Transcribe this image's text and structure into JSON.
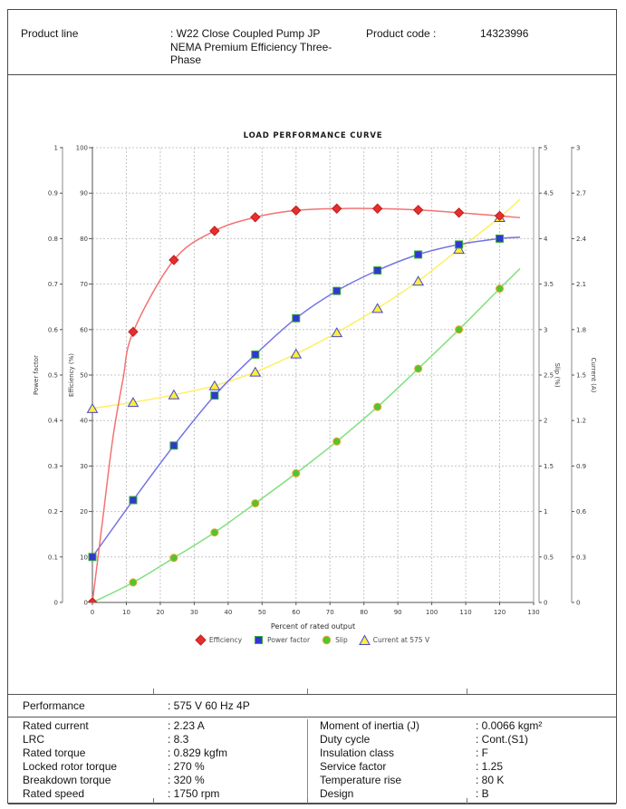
{
  "header": {
    "product_line_label": "Product line",
    "product_line_value": ": W22 Close Coupled Pump JP\nNEMA Premium Efficiency Three-\nPhase",
    "product_code_label": "Product code :",
    "product_code_value": "14323996"
  },
  "chart_data": {
    "type": "line",
    "title": "LOAD PERFORMANCE CURVE",
    "xlabel": "Percent of rated output",
    "grid": "on",
    "legend_position": "bottom",
    "x": [
      0,
      12,
      24,
      36,
      48,
      60,
      72,
      84,
      96,
      108,
      120
    ],
    "axes": {
      "x": {
        "label": "Percent of rated output",
        "min": 0,
        "max": 130,
        "step": 10
      },
      "power_factor": {
        "label": "Power factor",
        "min": 0,
        "max": 1,
        "step": 0.1,
        "side": "left-outer"
      },
      "efficiency": {
        "label": "Efficiency (%)",
        "min": 0,
        "max": 100,
        "step": 10,
        "side": "left-inner"
      },
      "slip": {
        "label": "Slip (%)",
        "min": 0,
        "max": 5,
        "step": 0.5,
        "side": "right-inner"
      },
      "current": {
        "label": "Current (A)",
        "min": 0,
        "max": 3,
        "step": 0.3,
        "side": "right-outer"
      }
    },
    "series": [
      {
        "name": "Efficiency",
        "axis": "efficiency",
        "marker": "diamond",
        "line_color": "#f47272",
        "marker_fill": "#e62e2e",
        "marker_stroke": "#bf1f1f",
        "values": [
          0,
          59.5,
          75.3,
          81.7,
          84.7,
          86.2,
          86.6,
          86.6,
          86.3,
          85.7,
          85.0
        ],
        "line_extra": [
          [
            3,
            18
          ],
          [
            6,
            36
          ],
          [
            9,
            49
          ],
          [
            126,
            84.6
          ]
        ]
      },
      {
        "name": "Power factor",
        "axis": "power_factor",
        "marker": "square",
        "line_color": "#7373e6",
        "marker_fill": "#3136d2",
        "marker_stroke": "#35ad35",
        "values": [
          0.1,
          0.225,
          0.345,
          0.455,
          0.545,
          0.625,
          0.685,
          0.73,
          0.765,
          0.787,
          0.8
        ],
        "line_extra": [
          [
            126,
            0.803
          ]
        ]
      },
      {
        "name": "Slip",
        "axis": "slip",
        "marker": "circle",
        "line_color": "#7fe07f",
        "marker_fill": "#4dc72f",
        "marker_stroke": "#f0a02c",
        "values": [
          0,
          0.22,
          0.49,
          0.77,
          1.09,
          1.42,
          1.77,
          2.15,
          2.57,
          3.0,
          3.45
        ],
        "line_extra": [
          [
            126,
            3.67
          ]
        ]
      },
      {
        "name": "Current at 575 V",
        "axis": "current",
        "marker": "triangle",
        "line_color": "#ffef60",
        "marker_fill": "#fcee3e",
        "marker_stroke": "#4646cb",
        "values": [
          1.28,
          1.32,
          1.37,
          1.43,
          1.52,
          1.64,
          1.78,
          1.94,
          2.12,
          2.33,
          2.54
        ],
        "line_extra": [
          [
            126,
            2.66
          ]
        ]
      }
    ]
  },
  "performance": {
    "section_label": "Performance",
    "section_value": ": 575 V 60 Hz 4P",
    "rows_left": [
      {
        "label": "Rated current",
        "value": ": 2.23 A"
      },
      {
        "label": "LRC",
        "value": ": 8.3"
      },
      {
        "label": "Rated torque",
        "value": ": 0.829 kgfm"
      },
      {
        "label": "Locked rotor torque",
        "value": ": 270 %"
      },
      {
        "label": "Breakdown torque",
        "value": ": 320 %"
      },
      {
        "label": "Rated speed",
        "value": ": 1750 rpm"
      }
    ],
    "rows_right": [
      {
        "label": "Moment of inertia (J)",
        "value": ": 0.0066 kgm²"
      },
      {
        "label": "Duty cycle",
        "value": ": Cont.(S1)"
      },
      {
        "label": "Insulation class",
        "value": ": F"
      },
      {
        "label": "Service factor",
        "value": ": 1.25"
      },
      {
        "label": "Temperature rise",
        "value": ": 80 K"
      },
      {
        "label": "Design",
        "value": ": B"
      }
    ]
  }
}
